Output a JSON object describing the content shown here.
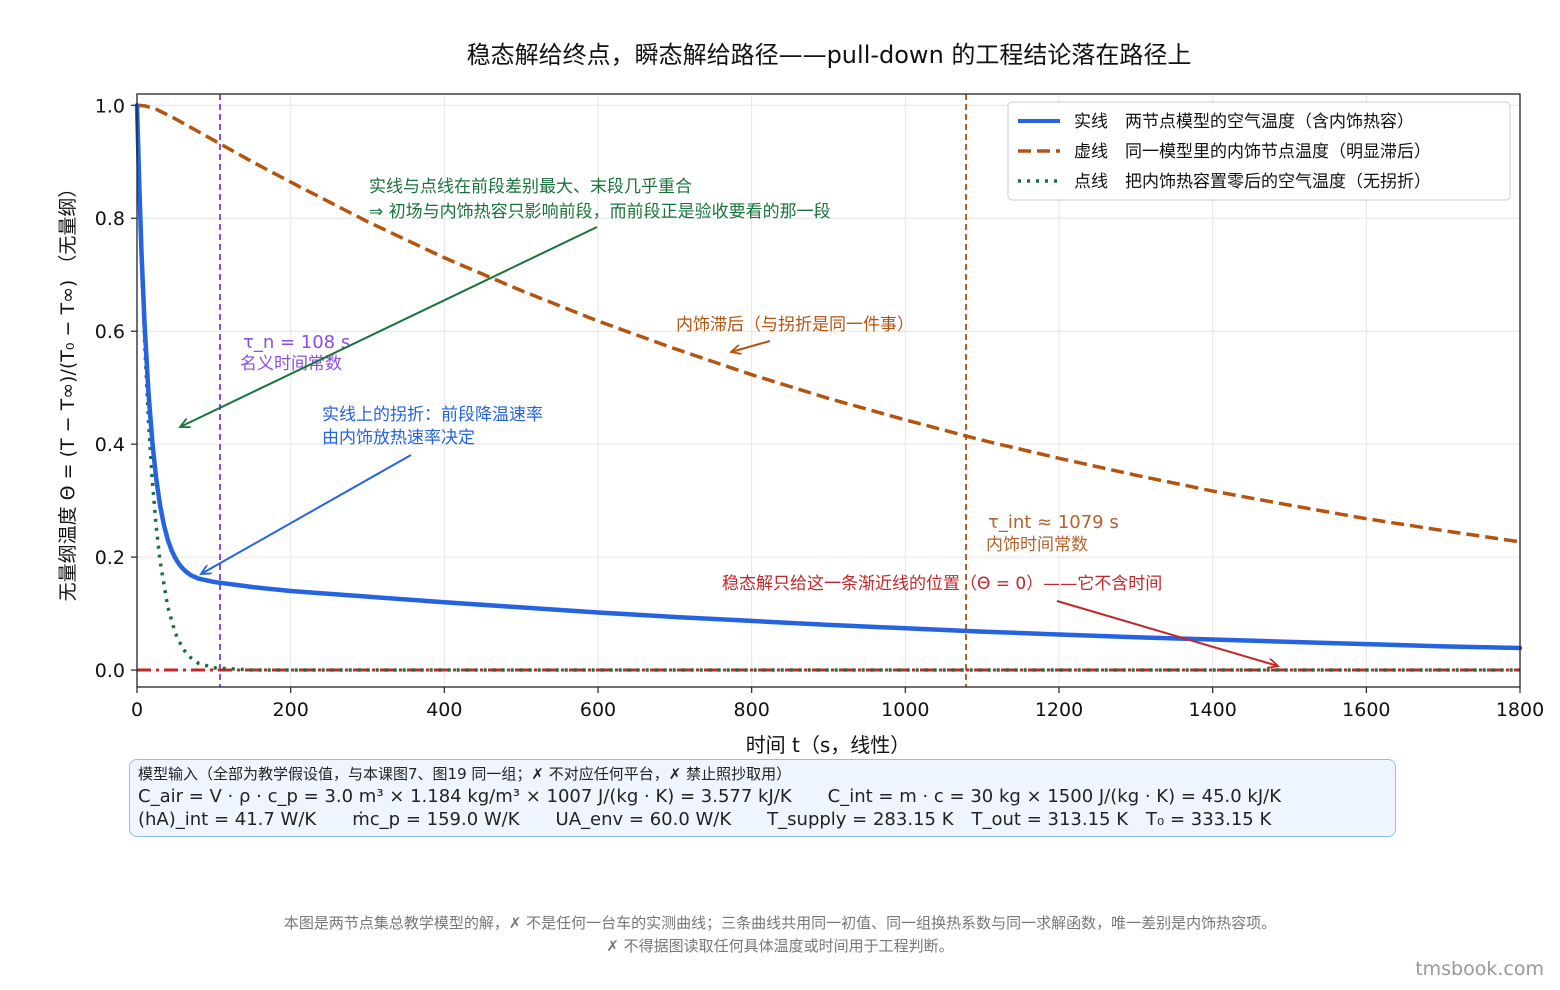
{
  "chart_data": {
    "type": "line",
    "title": "稳态解给终点，瞬态解给路径——pull-down 的工程结论落在路径上",
    "xlabel": "时间 t（s，线性）",
    "ylabel": "无量纲温度  Θ = (T − T∞)/(T₀ − T∞)   （无量纲）",
    "xlim": [
      0,
      1800
    ],
    "ylim": [
      -0.03,
      1.02
    ],
    "xticks": [
      0,
      200,
      400,
      600,
      800,
      1000,
      1200,
      1400,
      1600,
      1800
    ],
    "yticks": [
      0.0,
      0.2,
      0.4,
      0.6,
      0.8,
      1.0
    ],
    "ytick_labels": [
      "0.0",
      "0.2",
      "0.4",
      "0.6",
      "0.8",
      "1.0"
    ],
    "grid": true,
    "legend_position": "top-right",
    "series": [
      {
        "name": "实线　两节点模型的空气温度（含内饰热容）",
        "style": "solid",
        "color": "#2563e0",
        "x": [
          0,
          3,
          6,
          10,
          15,
          20,
          25,
          30,
          35,
          40,
          45,
          50,
          55,
          60,
          65,
          70,
          80,
          100,
          150,
          200,
          300,
          400,
          500,
          600,
          700,
          800,
          900,
          1000,
          1100,
          1200,
          1300,
          1400,
          1500,
          1600,
          1700,
          1800
        ],
        "y": [
          1.0,
          0.856,
          0.734,
          0.608,
          0.49,
          0.403,
          0.339,
          0.292,
          0.257,
          0.231,
          0.212,
          0.198,
          0.187,
          0.179,
          0.173,
          0.168,
          0.162,
          0.156,
          0.147,
          0.14,
          0.13,
          0.12,
          0.111,
          0.102,
          0.094,
          0.087,
          0.08,
          0.074,
          0.068,
          0.063,
          0.058,
          0.054,
          0.05,
          0.046,
          0.042,
          0.039
        ]
      },
      {
        "name": "虚线　同一模型里的内饰节点温度（明显滞后）",
        "style": "dashed",
        "color": "#b5540f",
        "x": [
          0,
          10,
          25,
          50,
          100,
          150,
          200,
          300,
          400,
          500,
          600,
          700,
          800,
          900,
          1000,
          1100,
          1200,
          1300,
          1400,
          1500,
          1600,
          1700,
          1800
        ],
        "y": [
          1.0,
          0.999,
          0.993,
          0.976,
          0.938,
          0.9,
          0.864,
          0.794,
          0.73,
          0.672,
          0.618,
          0.569,
          0.523,
          0.481,
          0.443,
          0.407,
          0.375,
          0.345,
          0.317,
          0.292,
          0.268,
          0.247,
          0.227
        ]
      },
      {
        "name": "点线　把内饰热容置零后的空气温度（无拐折）",
        "style": "dotted",
        "color": "#18733a",
        "x": [
          0,
          5,
          10,
          15,
          20,
          25,
          30,
          40,
          50,
          60,
          70,
          80,
          100,
          150,
          200,
          400,
          600,
          800,
          1000,
          1200,
          1400,
          1600,
          1800
        ],
        "y": [
          1.0,
          0.76,
          0.578,
          0.44,
          0.334,
          0.254,
          0.193,
          0.112,
          0.065,
          0.037,
          0.022,
          0.012,
          0.004,
          0.0,
          0.0,
          0.0,
          0.0,
          0.0,
          0.0,
          0.0,
          0.0,
          0.0,
          0.0
        ]
      },
      {
        "name": "",
        "style": "dashdot",
        "color": "#c0282d",
        "x": [
          0,
          1800
        ],
        "y": [
          0.0,
          0.0
        ]
      }
    ],
    "vlines": [
      {
        "x": 108,
        "color": "#8a4fe0",
        "label": "τ_n = 108 s",
        "sublabel": "名义时间常数"
      },
      {
        "x": 1079,
        "color": "#b5612a",
        "label": "τ_int ≈ 1079 s",
        "sublabel": "内饰时间常数"
      }
    ],
    "annotations": [
      {
        "color": "#18733a",
        "lines": [
          "实线与点线在前段差别最大、末段几乎重合",
          "⇒ 初场与内饰热容只影响前段，而前段正是验收要看的那一段"
        ],
        "arrow_to": [
          45,
          0.425
        ]
      },
      {
        "color": "#b5540f",
        "lines": [
          "内饰滞后（与拐折是同一件事）"
        ],
        "arrow_to": [
          770,
          0.555
        ]
      },
      {
        "color": "#2563e0",
        "lines": [
          "实线上的拐折：前段降温速率",
          "由内饰放热速率决定"
        ],
        "arrow_to": [
          75,
          0.163
        ]
      },
      {
        "color": "#c0282d",
        "lines": [
          "稳态解只给这一条渐近线的位置（Θ = 0）——它不含时间"
        ],
        "arrow_to": [
          1500,
          0.0
        ]
      }
    ]
  },
  "info_box": {
    "line1": "模型输入（全部为教学假设值，与本课图7、图19 同一组；✗ 不对应任何平台，✗ 禁止照抄取用）",
    "c_air": "C_air = V · ρ · c_p = 3.0 m³ × 1.184 kg/m³ × 1007 J/(kg · K) = 3.577 kJ/K",
    "c_int": "C_int = m · c = 30 kg × 1500 J/(kg · K) = 45.0 kJ/K",
    "ha_int": "(hA)_int = 41.7 W/K",
    "mcp": "ṁc_p = 159.0 W/K",
    "ua_env": "UA_env = 60.0 W/K",
    "t_supply": "T_supply = 283.15 K",
    "t_out": "T_out = 313.15 K",
    "t0": "T₀ = 333.15 K"
  },
  "footer": {
    "line1": "本图是两节点集总教学模型的解，✗ 不是任何一台车的实测曲线；三条曲线共用同一初值、同一组换热系数与同一求解函数，唯一差别是内饰热容项。",
    "line2": "✗ 不得据图读取任何具体温度或时间用于工程判断。"
  },
  "brand": "tmsbook.com"
}
